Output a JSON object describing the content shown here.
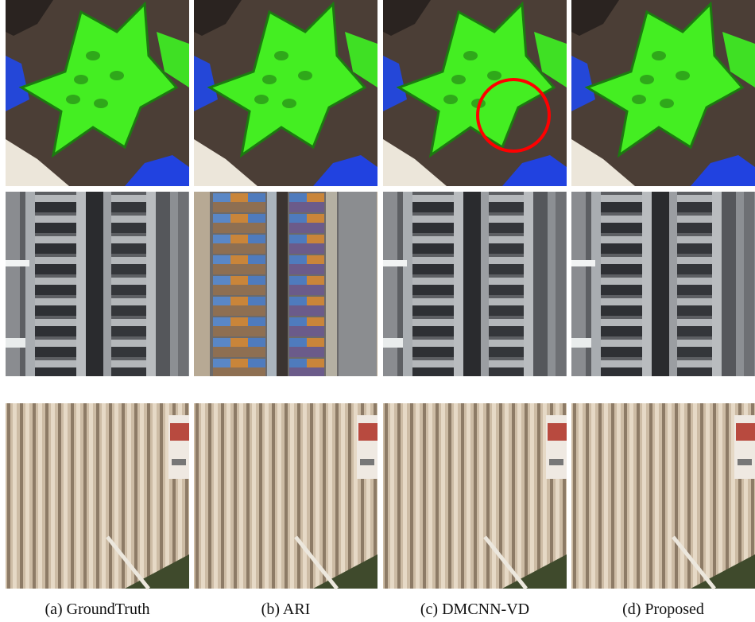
{
  "captions": [
    "(a) GroundTruth",
    "(b) ARI",
    "(c) DMCNN-VD",
    "(d) Proposed"
  ]
}
